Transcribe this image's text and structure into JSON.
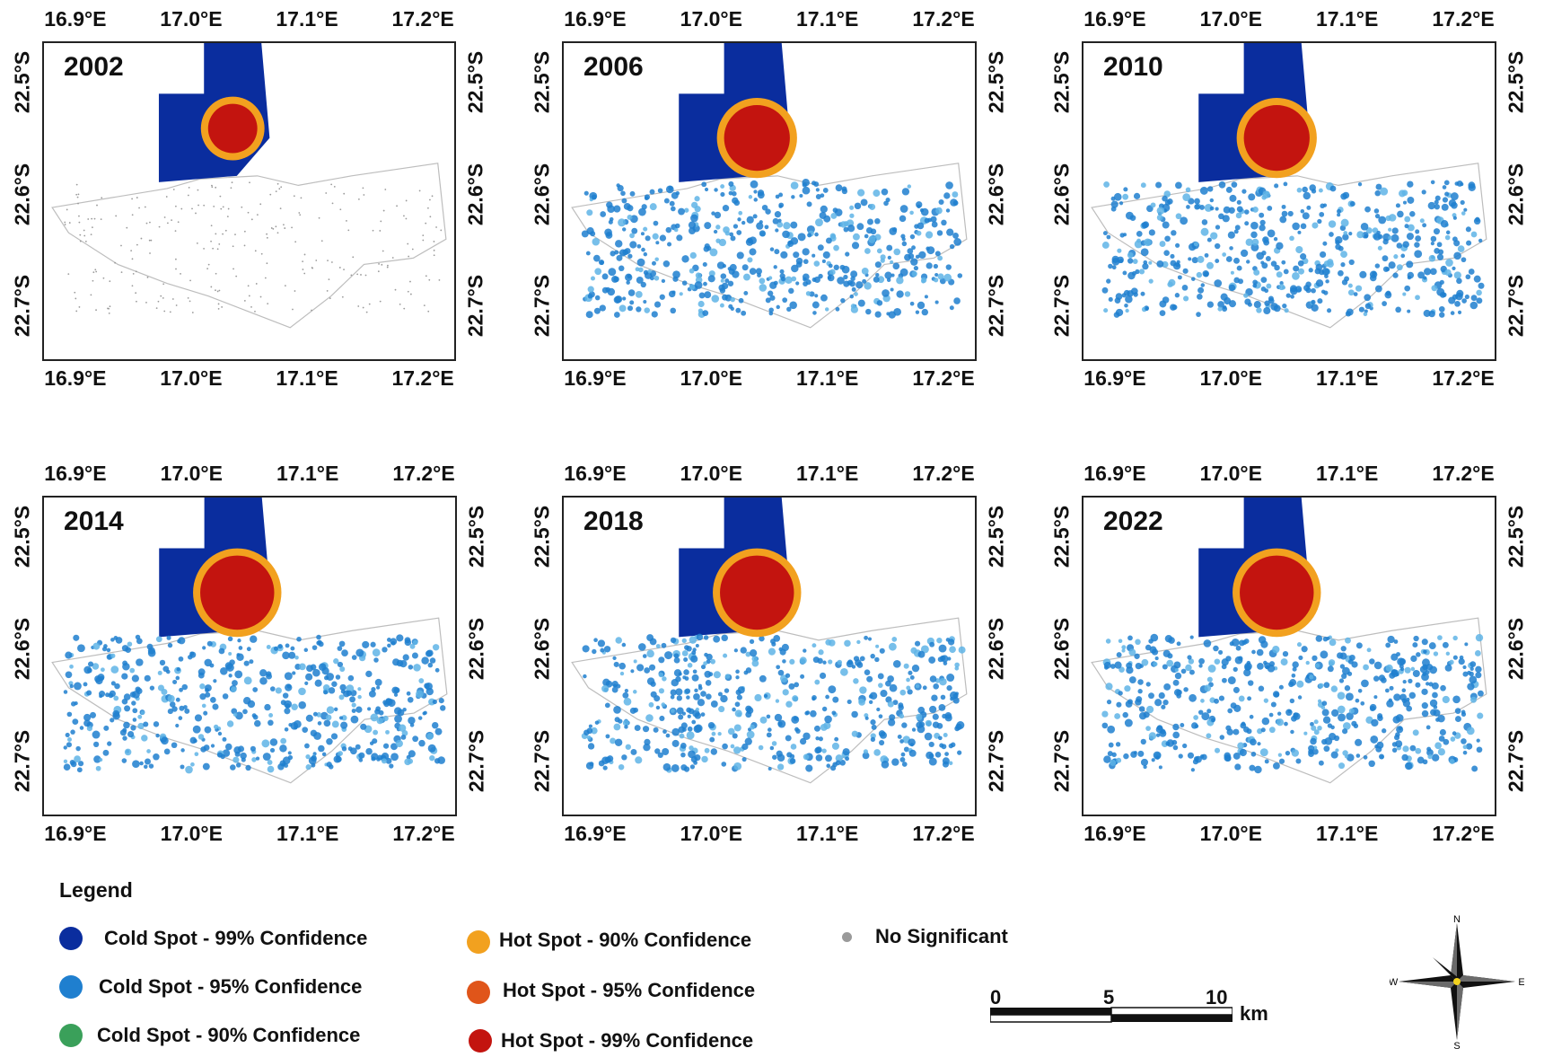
{
  "panels": [
    {
      "year": "2002",
      "hot_extent": "small"
    },
    {
      "year": "2006",
      "hot_extent": "medium"
    },
    {
      "year": "2010",
      "hot_extent": "medium"
    },
    {
      "year": "2014",
      "hot_extent": "large"
    },
    {
      "year": "2018",
      "hot_extent": "large"
    },
    {
      "year": "2022",
      "hot_extent": "large"
    }
  ],
  "x_ticks": [
    "16.9°E",
    "17.0°E",
    "17.1°E",
    "17.2°E"
  ],
  "y_ticks": [
    "22.5°S",
    "22.6°S",
    "22.7°S"
  ],
  "legend": {
    "title": "Legend",
    "items": [
      {
        "label": "Cold Spot - 99% Confidence",
        "color": "#0a2d9e"
      },
      {
        "label": "Cold Spot - 95% Confidence",
        "color": "#1f7fcf"
      },
      {
        "label": "Cold Spot - 90% Confidence",
        "color": "#3aa05a"
      },
      {
        "label": "Hot Spot - 90% Confidence",
        "color": "#f2a11f"
      },
      {
        "label": "Hot Spot - 95% Confidence",
        "color": "#e0551a"
      },
      {
        "label": "Hot Spot - 99% Confidence",
        "color": "#c3140f"
      },
      {
        "label": "No Significant",
        "color": "#9a9a9a"
      }
    ]
  },
  "scale_bar": {
    "labels": [
      "0",
      "5",
      "10"
    ],
    "unit": "km"
  },
  "north_arrow": {
    "n": "N",
    "e": "E",
    "s": "S",
    "w": "W"
  }
}
